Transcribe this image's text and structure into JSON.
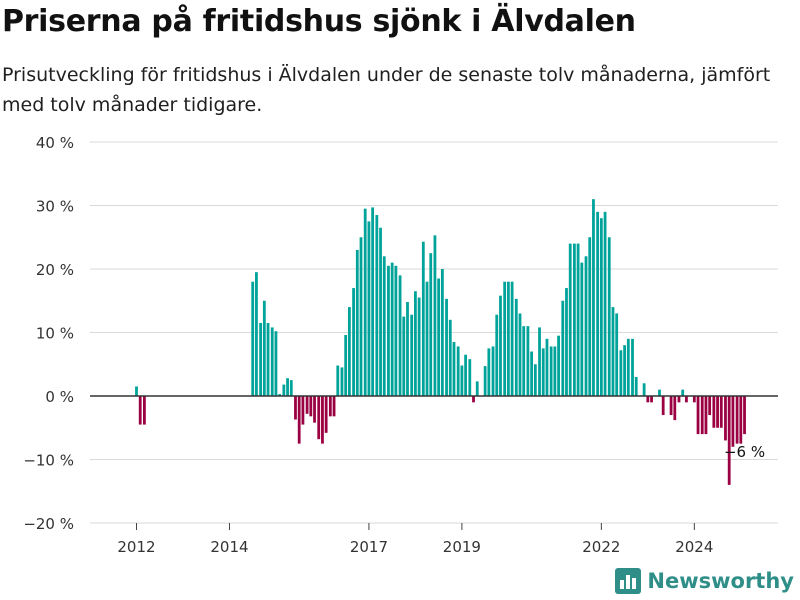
{
  "header": {
    "title": "Priserna på fritidshus sjönk i Älvdalen",
    "subtitle": "Prisutveckling för fritidshus i Älvdalen under de senaste tolv månaderna, jämfört med tolv månader tidigare."
  },
  "brand": {
    "name": "Newsworthy",
    "icon": "bar-chart-logo-icon",
    "color": "#2f8f88"
  },
  "colors": {
    "positive": "#00a39a",
    "negative": "#9b0042",
    "grid": "#d9d9d9",
    "zero": "#333333"
  },
  "chart_data": {
    "type": "bar",
    "title": "Priserna på fritidshus sjönk i Älvdalen",
    "xlabel": "",
    "ylabel": "",
    "x_range": [
      2011.0,
      2025.8
    ],
    "ylim": [
      -20,
      40
    ],
    "y_ticks": [
      40,
      30,
      20,
      10,
      0,
      -10,
      -20
    ],
    "y_tick_labels": [
      "40 %",
      "30 %",
      "20 %",
      "10 %",
      "0 %",
      "−10 %",
      "−20 %"
    ],
    "x_ticks": [
      2012,
      2014,
      2017,
      2019,
      2022,
      2024
    ],
    "x_tick_labels": [
      "2012",
      "2014",
      "2017",
      "2019",
      "2022",
      "2024"
    ],
    "grid": true,
    "annotation": {
      "text": "−6 %",
      "x": 2025.08
    },
    "series": [
      {
        "points": [
          [
            2012.0,
            1.5
          ],
          [
            2012.08,
            -4.5
          ],
          [
            2012.17,
            -4.5
          ],
          [
            2014.5,
            18
          ],
          [
            2014.58,
            19.5
          ],
          [
            2014.67,
            11.5
          ],
          [
            2014.75,
            15
          ],
          [
            2014.83,
            11.5
          ],
          [
            2014.92,
            10.8
          ],
          [
            2015.0,
            10.2
          ],
          [
            2015.08,
            0.3
          ],
          [
            2015.17,
            1.8
          ],
          [
            2015.25,
            2.8
          ],
          [
            2015.33,
            2.5
          ],
          [
            2015.42,
            -3.7
          ],
          [
            2015.5,
            -7.5
          ],
          [
            2015.58,
            -4.5
          ],
          [
            2015.67,
            -2.8
          ],
          [
            2015.75,
            -3.2
          ],
          [
            2015.83,
            -4.2
          ],
          [
            2015.92,
            -6.8
          ],
          [
            2016.0,
            -7.5
          ],
          [
            2016.08,
            -5.8
          ],
          [
            2016.17,
            -3.2
          ],
          [
            2016.25,
            -3.2
          ],
          [
            2016.33,
            4.8
          ],
          [
            2016.42,
            4.5
          ],
          [
            2016.5,
            9.6
          ],
          [
            2016.58,
            14
          ],
          [
            2016.67,
            17
          ],
          [
            2016.75,
            23
          ],
          [
            2016.83,
            25
          ],
          [
            2016.92,
            29.5
          ],
          [
            2017.0,
            27.5
          ],
          [
            2017.08,
            29.7
          ],
          [
            2017.17,
            28.5
          ],
          [
            2017.25,
            26.5
          ],
          [
            2017.33,
            22
          ],
          [
            2017.42,
            20.5
          ],
          [
            2017.5,
            21
          ],
          [
            2017.58,
            20.5
          ],
          [
            2017.67,
            19
          ],
          [
            2017.75,
            12.5
          ],
          [
            2017.83,
            14.8
          ],
          [
            2017.92,
            12.8
          ],
          [
            2018.0,
            16.5
          ],
          [
            2018.08,
            15.5
          ],
          [
            2018.17,
            24.3
          ],
          [
            2018.25,
            18
          ],
          [
            2018.33,
            22.5
          ],
          [
            2018.42,
            25.3
          ],
          [
            2018.5,
            18.5
          ],
          [
            2018.58,
            20
          ],
          [
            2018.67,
            15.3
          ],
          [
            2018.75,
            12
          ],
          [
            2018.83,
            8.5
          ],
          [
            2018.92,
            7.8
          ],
          [
            2019.0,
            4.8
          ],
          [
            2019.08,
            6.5
          ],
          [
            2019.17,
            5.8
          ],
          [
            2019.25,
            -1
          ],
          [
            2019.33,
            2.3
          ],
          [
            2019.5,
            4.7
          ],
          [
            2019.58,
            7.5
          ],
          [
            2019.67,
            7.8
          ],
          [
            2019.75,
            12.8
          ],
          [
            2019.83,
            15.8
          ],
          [
            2019.92,
            18
          ],
          [
            2020.0,
            18
          ],
          [
            2020.08,
            18
          ],
          [
            2020.17,
            15.3
          ],
          [
            2020.25,
            13
          ],
          [
            2020.33,
            11
          ],
          [
            2020.42,
            11
          ],
          [
            2020.5,
            7
          ],
          [
            2020.58,
            5
          ],
          [
            2020.67,
            10.8
          ],
          [
            2020.75,
            7.5
          ],
          [
            2020.83,
            9
          ],
          [
            2020.92,
            7.8
          ],
          [
            2021.0,
            7.8
          ],
          [
            2021.08,
            9.5
          ],
          [
            2021.17,
            15
          ],
          [
            2021.25,
            17
          ],
          [
            2021.33,
            24
          ],
          [
            2021.42,
            24
          ],
          [
            2021.5,
            24
          ],
          [
            2021.58,
            21
          ],
          [
            2021.67,
            22
          ],
          [
            2021.75,
            25
          ],
          [
            2021.83,
            31
          ],
          [
            2021.92,
            29
          ],
          [
            2022.0,
            28
          ],
          [
            2022.08,
            29
          ],
          [
            2022.17,
            25
          ],
          [
            2022.25,
            14
          ],
          [
            2022.33,
            13
          ],
          [
            2022.42,
            7.2
          ],
          [
            2022.5,
            8
          ],
          [
            2022.58,
            9
          ],
          [
            2022.67,
            9
          ],
          [
            2022.75,
            3
          ],
          [
            2022.92,
            2
          ],
          [
            2023.0,
            -1
          ],
          [
            2023.08,
            -1
          ],
          [
            2023.25,
            1
          ],
          [
            2023.33,
            -3
          ],
          [
            2023.5,
            -3
          ],
          [
            2023.58,
            -3.8
          ],
          [
            2023.67,
            -1
          ],
          [
            2023.75,
            1
          ],
          [
            2023.83,
            -1
          ],
          [
            2024.0,
            -1
          ],
          [
            2024.08,
            -6
          ],
          [
            2024.17,
            -6
          ],
          [
            2024.25,
            -6
          ],
          [
            2024.33,
            -3
          ],
          [
            2024.42,
            -5
          ],
          [
            2024.5,
            -5
          ],
          [
            2024.58,
            -5
          ],
          [
            2024.67,
            -7
          ],
          [
            2024.75,
            -14
          ],
          [
            2024.83,
            -8
          ],
          [
            2024.92,
            -7.5
          ],
          [
            2025.0,
            -7.5
          ],
          [
            2025.08,
            -6
          ]
        ]
      }
    ]
  }
}
